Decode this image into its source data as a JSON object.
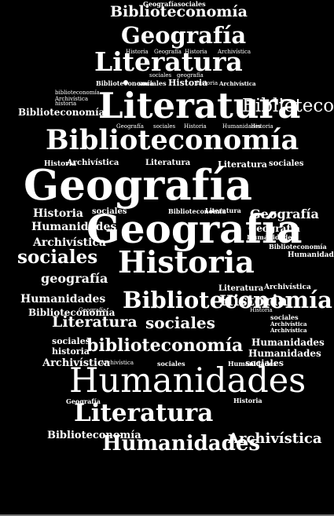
{
  "cloud": {
    "words": [
      "Geografía",
      "sociales",
      "Biblioteconomía",
      "Geografía",
      "Literatura",
      "Historia",
      "Geografía",
      "Historia",
      "Archivística",
      "sociales",
      "geografía",
      "Historia",
      "Biblioteconomía",
      "sociales",
      "historia",
      "Archivística",
      "biblioteconomía",
      "Archivística",
      "historia",
      "Biblioteconomía",
      "Literatura",
      "Biblioteconomía",
      "Geografía",
      "sociales",
      "Historia",
      "Humanidades",
      "Historia",
      "Biblioteconomía",
      "Historia",
      "Archivística",
      "Literatura",
      "Literatura",
      "sociales",
      "Geografía",
      "Historia",
      "sociales",
      "Biblioteconomía",
      "Literatura",
      "Geografía",
      "Humanidades",
      "Geografía",
      "Geografía",
      "Archivística",
      "Humanidades",
      "Biblioteconomía",
      "sociales",
      "Historia",
      "Humanidades",
      "geografía",
      "Literatura",
      "Archivística",
      "Humanidades",
      "Biblioteconomía",
      "Historia",
      "Biblioteconomía",
      "Geografía",
      "Historia",
      "Literatura",
      "sociales",
      "sociales",
      "Archivística",
      "Archivística",
      "sociales",
      "biblioteconomía",
      "Humanidades",
      "historia",
      "Humanidades",
      "Archivística",
      "Archivística",
      "sociales",
      "Humanidades",
      "sociales",
      "Humanidades",
      "Geografía",
      "Historia",
      "Literatura",
      "Biblioteconomía",
      "Humanidades",
      "Archivística"
    ]
  }
}
